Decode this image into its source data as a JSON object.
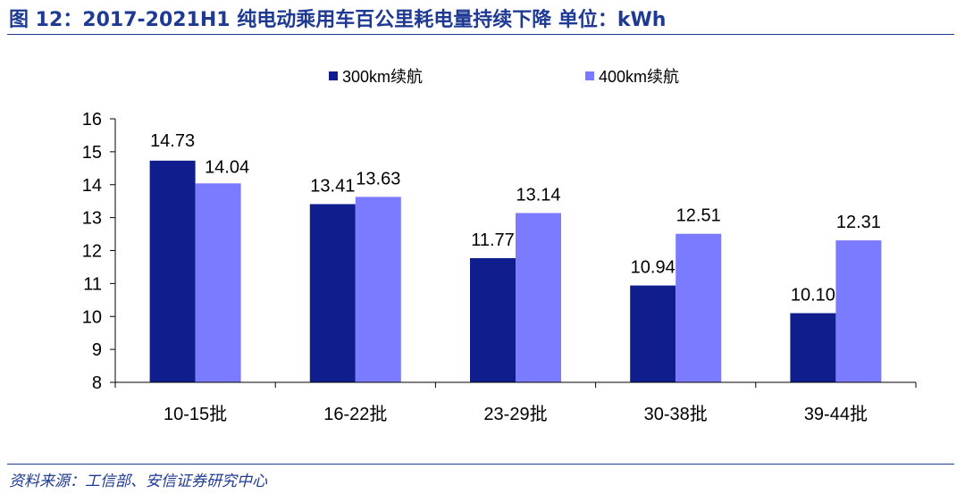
{
  "figure": {
    "title": "图 12：2017-2021H1 纯电动乘用车百公里耗电量持续下降 单位：kWh",
    "source": "资料来源：工信部、安信证券研究中心"
  },
  "chart_data": {
    "type": "bar",
    "categories": [
      "10-15批",
      "16-22批",
      "23-29批",
      "30-38批",
      "39-44批"
    ],
    "series": [
      {
        "name": "300km续航",
        "values": [
          14.73,
          13.41,
          11.77,
          10.94,
          10.1
        ],
        "labels": [
          "14.73",
          "13.41",
          "11.77",
          "10.94",
          "10.10"
        ],
        "color": "#0f1e8c"
      },
      {
        "name": "400km续航",
        "values": [
          14.04,
          13.63,
          13.14,
          12.51,
          12.31
        ],
        "labels": [
          "14.04",
          "13.63",
          "13.14",
          "12.51",
          "12.31"
        ],
        "color": "#7b7bff"
      }
    ],
    "ylim": [
      8,
      16
    ],
    "yticks": [
      "8",
      "9",
      "10",
      "11",
      "12",
      "13",
      "14",
      "15",
      "16"
    ],
    "grid": false,
    "legend_position": "top"
  }
}
